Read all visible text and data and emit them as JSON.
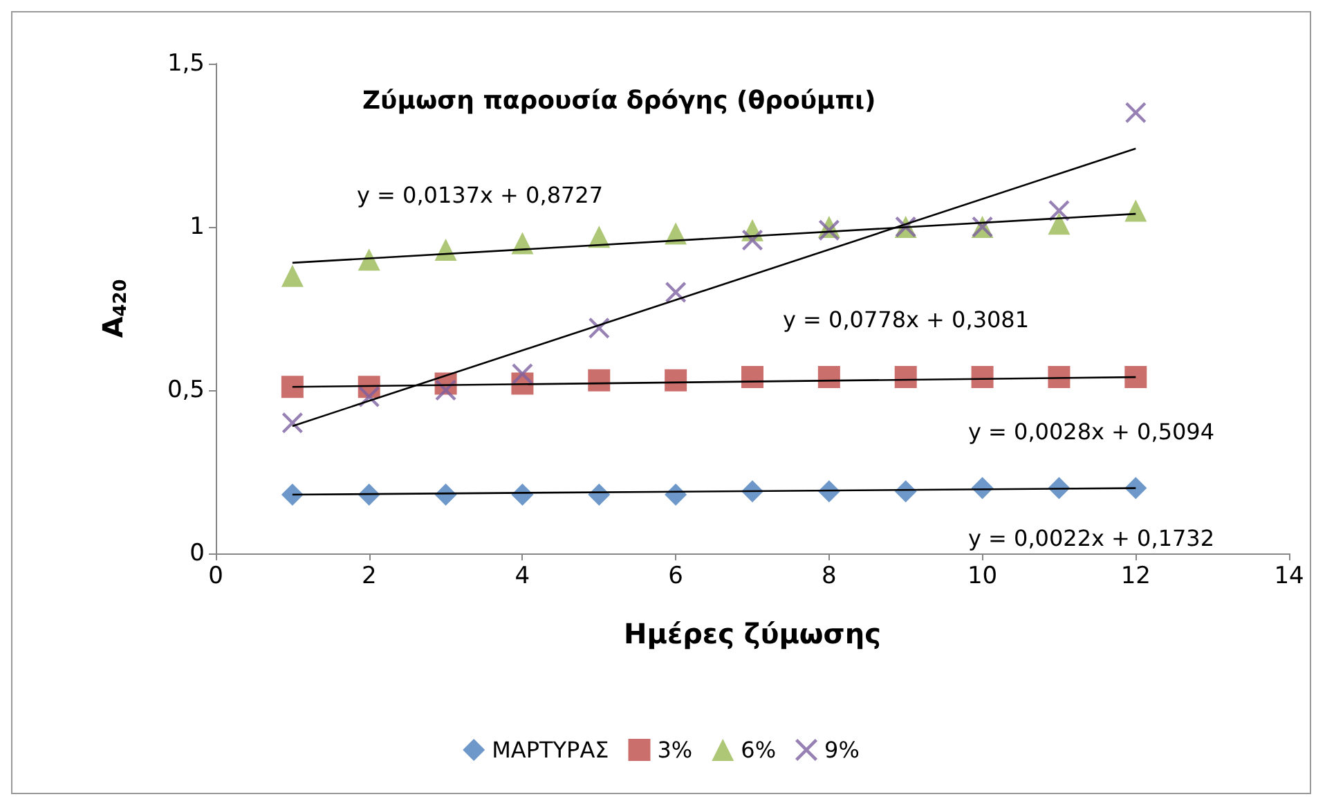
{
  "chart_data": {
    "type": "scatter",
    "title": "Ζύμωση παρουσία δρόγης (θρούμπι)",
    "xlabel": "Ημέρες ζύμωσης",
    "ylabel": "A$_{420}$",
    "x": [
      1,
      2,
      3,
      4,
      5,
      6,
      7,
      8,
      9,
      10,
      11,
      12
    ],
    "series": [
      {
        "name": "ΜΑΡΤΥΡΑΣ",
        "color": "#4a7ebb",
        "marker": "diamond",
        "values": [
          0.18,
          0.18,
          0.18,
          0.18,
          0.18,
          0.18,
          0.19,
          0.19,
          0.19,
          0.2,
          0.2,
          0.2
        ]
      },
      {
        "name": "3%",
        "color": "#be4b48",
        "marker": "square",
        "values": [
          0.51,
          0.51,
          0.52,
          0.52,
          0.53,
          0.53,
          0.54,
          0.54,
          0.54,
          0.54,
          0.54,
          0.54
        ]
      },
      {
        "name": "6%",
        "color": "#98b954",
        "marker": "triangle",
        "values": [
          0.85,
          0.9,
          0.93,
          0.95,
          0.97,
          0.98,
          0.99,
          1.0,
          1.0,
          1.0,
          1.01,
          1.05
        ]
      },
      {
        "name": "9%",
        "color": "#7d60a0",
        "marker": "cross",
        "values": [
          0.4,
          0.48,
          0.5,
          0.55,
          0.69,
          0.8,
          0.96,
          0.99,
          1.0,
          1.0,
          1.05,
          1.35
        ]
      },
      {
        "type": "line",
        "color": "#000000",
        "marker": "none",
        "values": [
          0.18,
          null,
          null,
          null,
          null,
          null,
          null,
          null,
          null,
          null,
          null,
          0.2
        ]
      },
      {
        "type": "line",
        "color": "#000000",
        "marker": "none",
        "values": [
          0.51,
          null,
          null,
          null,
          null,
          null,
          null,
          null,
          null,
          null,
          null,
          0.54
        ]
      },
      {
        "type": "line",
        "color": "#000000",
        "marker": "none",
        "values": [
          0.89,
          null,
          null,
          null,
          null,
          null,
          null,
          null,
          null,
          null,
          null,
          1.04
        ]
      },
      {
        "type": "line",
        "color": "#000000",
        "marker": "none",
        "values": [
          0.39,
          null,
          null,
          null,
          null,
          null,
          null,
          null,
          null,
          null,
          null,
          1.24
        ]
      }
    ],
    "annotations": [
      "y = 0,0022x + 0,1732",
      "y = 0,0028x + 0,5094",
      "y = 0,0137x + 0,8727",
      "y = 0,0778x + 0,3081"
    ],
    "xlim": [
      0,
      14
    ],
    "xticks": [
      0,
      2,
      4,
      6,
      8,
      10,
      12,
      14
    ],
    "ylim": [
      0,
      1.5
    ],
    "yticks": [
      0,
      {
        "value": 0.5,
        "label": "0,5"
      },
      1,
      {
        "value": 1.5,
        "label": "1,5"
      }
    ],
    "grid": false,
    "legend": "bottom"
  }
}
